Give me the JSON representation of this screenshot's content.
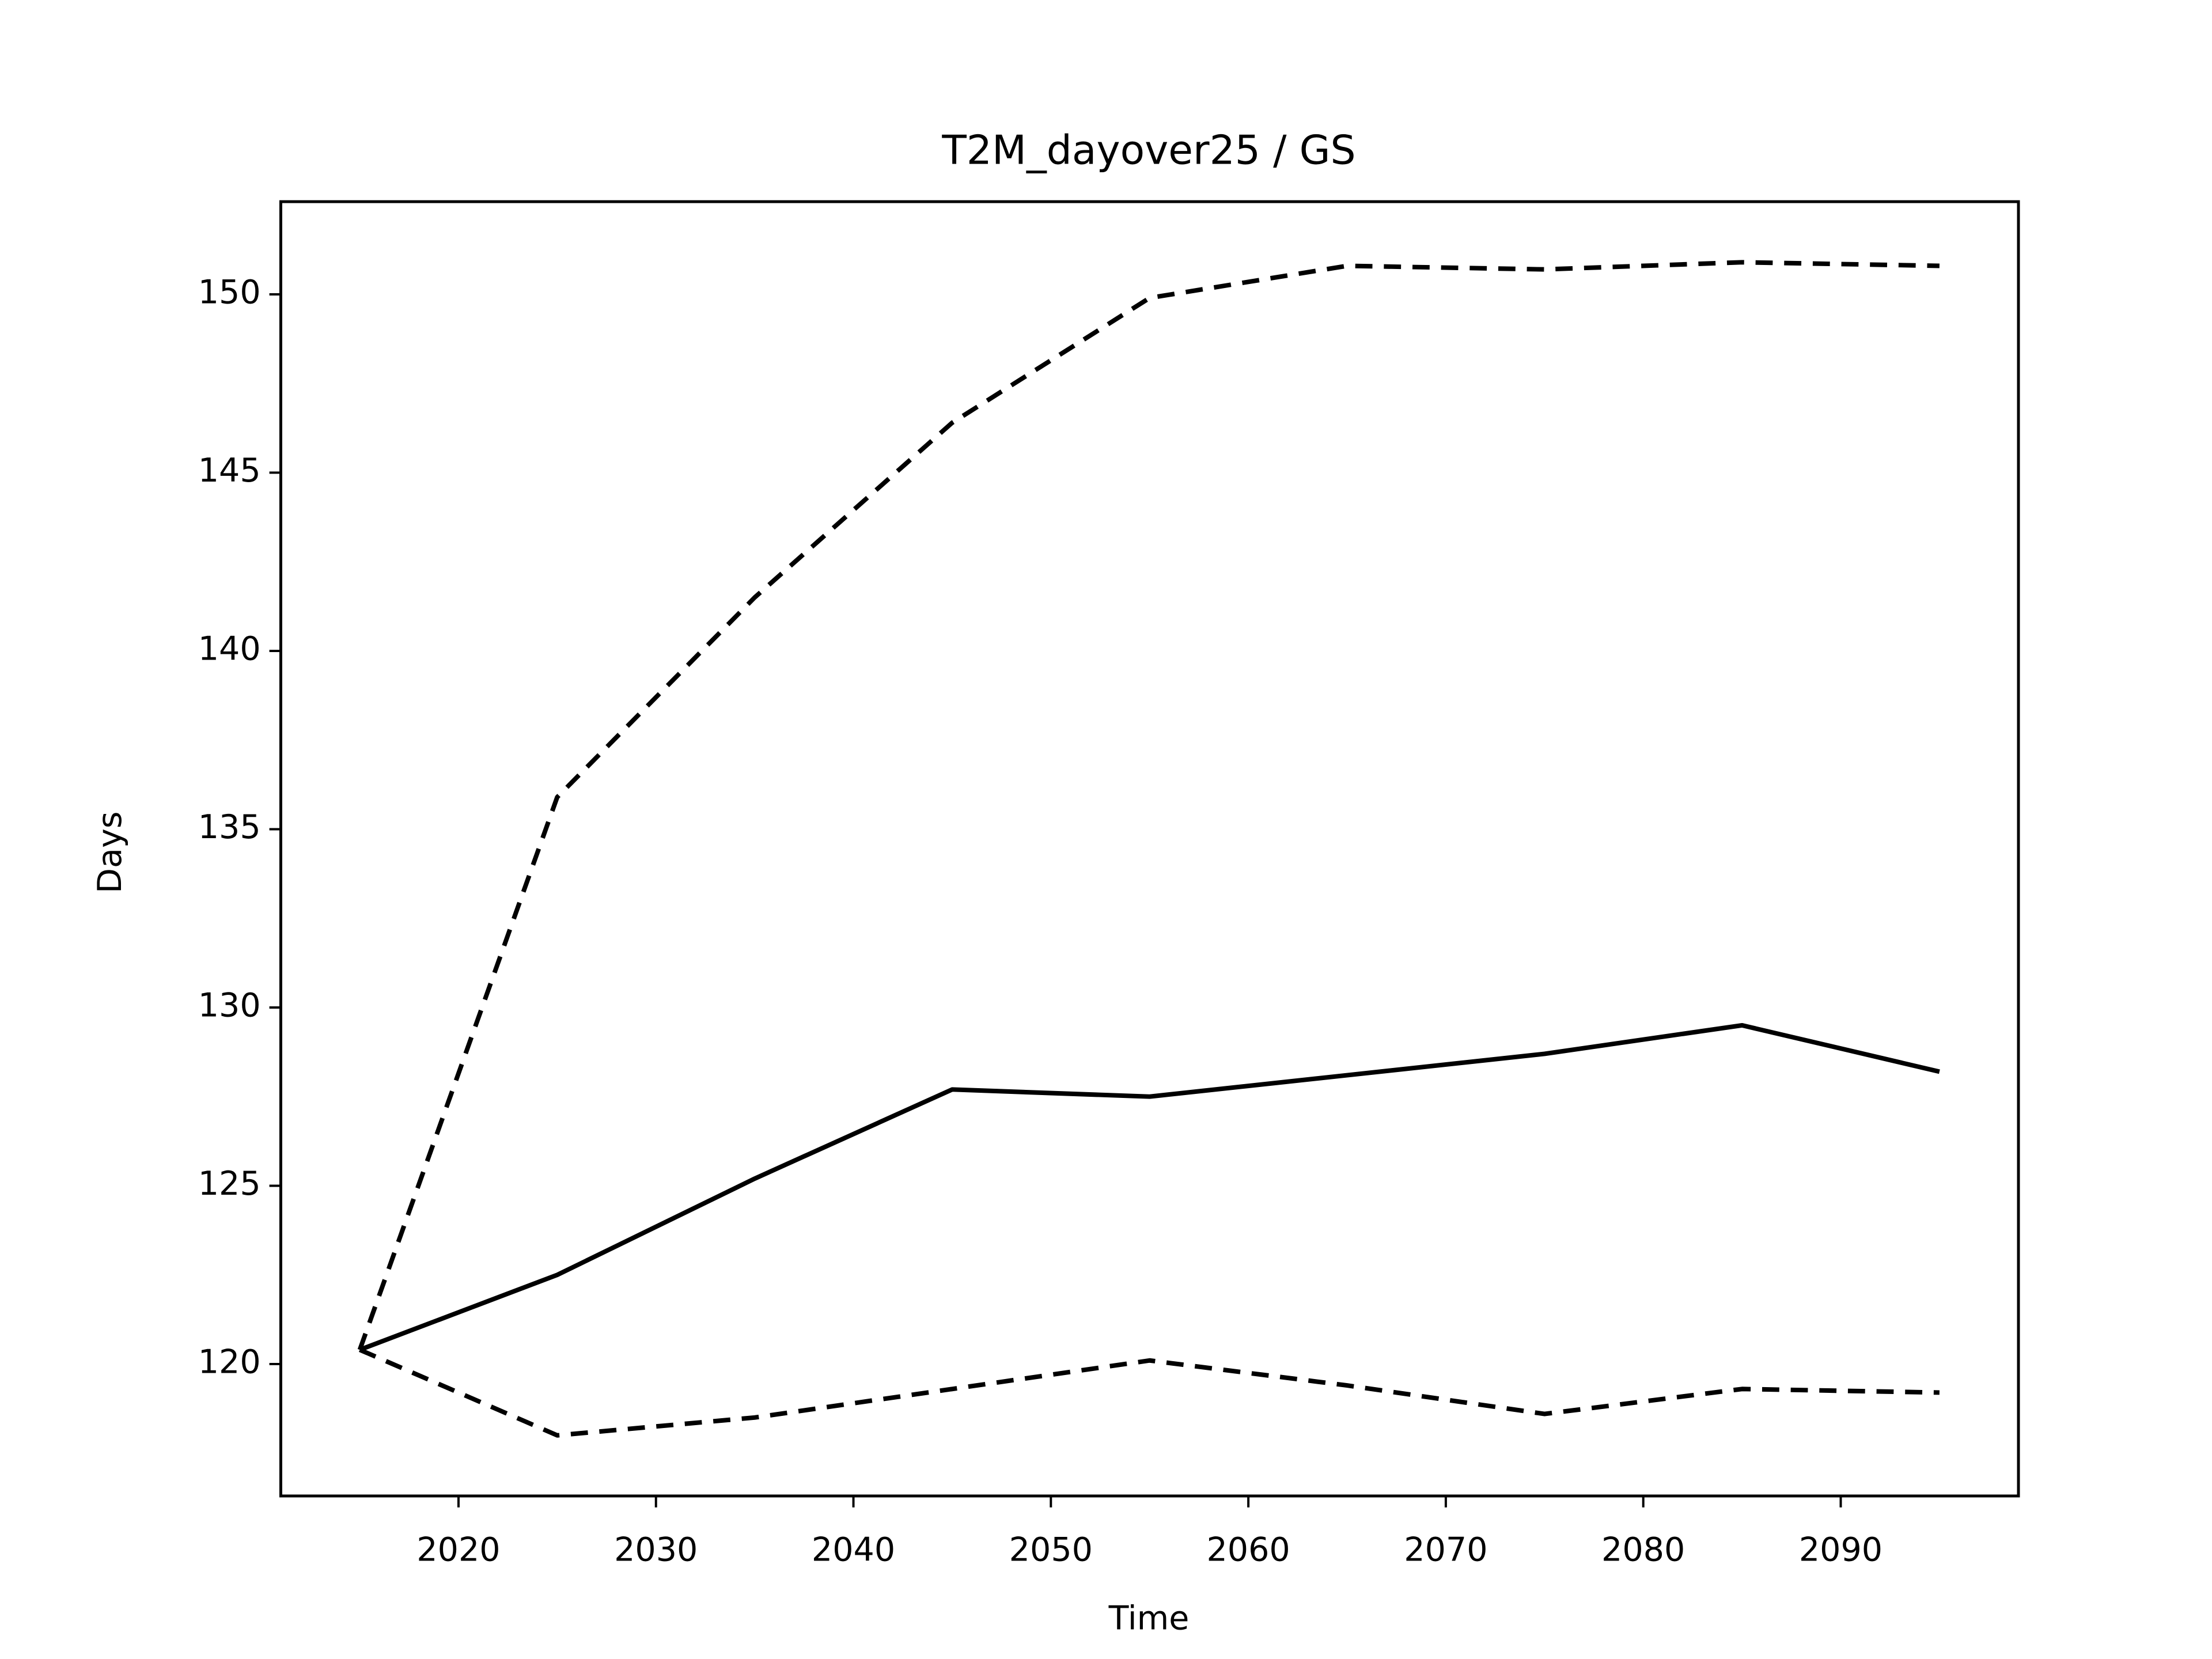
{
  "chart_data": {
    "type": "line",
    "title": "T2M_dayover25 / GS",
    "xlabel": "Time",
    "ylabel": "Days",
    "x": [
      2015,
      2025,
      2035,
      2045,
      2055,
      2065,
      2075,
      2085,
      2095
    ],
    "series": [
      {
        "color": "#000000",
        "linestyle": "solid",
        "values": [
          120.4,
          122.5,
          125.2,
          127.7,
          127.5,
          128.1,
          128.7,
          129.5,
          128.2
        ]
      },
      {
        "color": "#000000",
        "linestyle": "dashed",
        "values": [
          120.4,
          135.9,
          141.5,
          146.4,
          149.9,
          150.8,
          150.7,
          150.9,
          150.8
        ]
      },
      {
        "color": "#000000",
        "linestyle": "dashed",
        "values": [
          120.4,
          118.0,
          118.5,
          119.3,
          120.1,
          119.4,
          118.6,
          119.3,
          119.2
        ]
      }
    ],
    "xlim": [
      2011,
      2099
    ],
    "xticks": [
      2020,
      2030,
      2040,
      2050,
      2060,
      2070,
      2080,
      2090
    ],
    "ylim": [
      116.3,
      152.6
    ],
    "yticks": [
      120,
      125,
      130,
      135,
      140,
      145,
      150
    ],
    "grid": false
  }
}
